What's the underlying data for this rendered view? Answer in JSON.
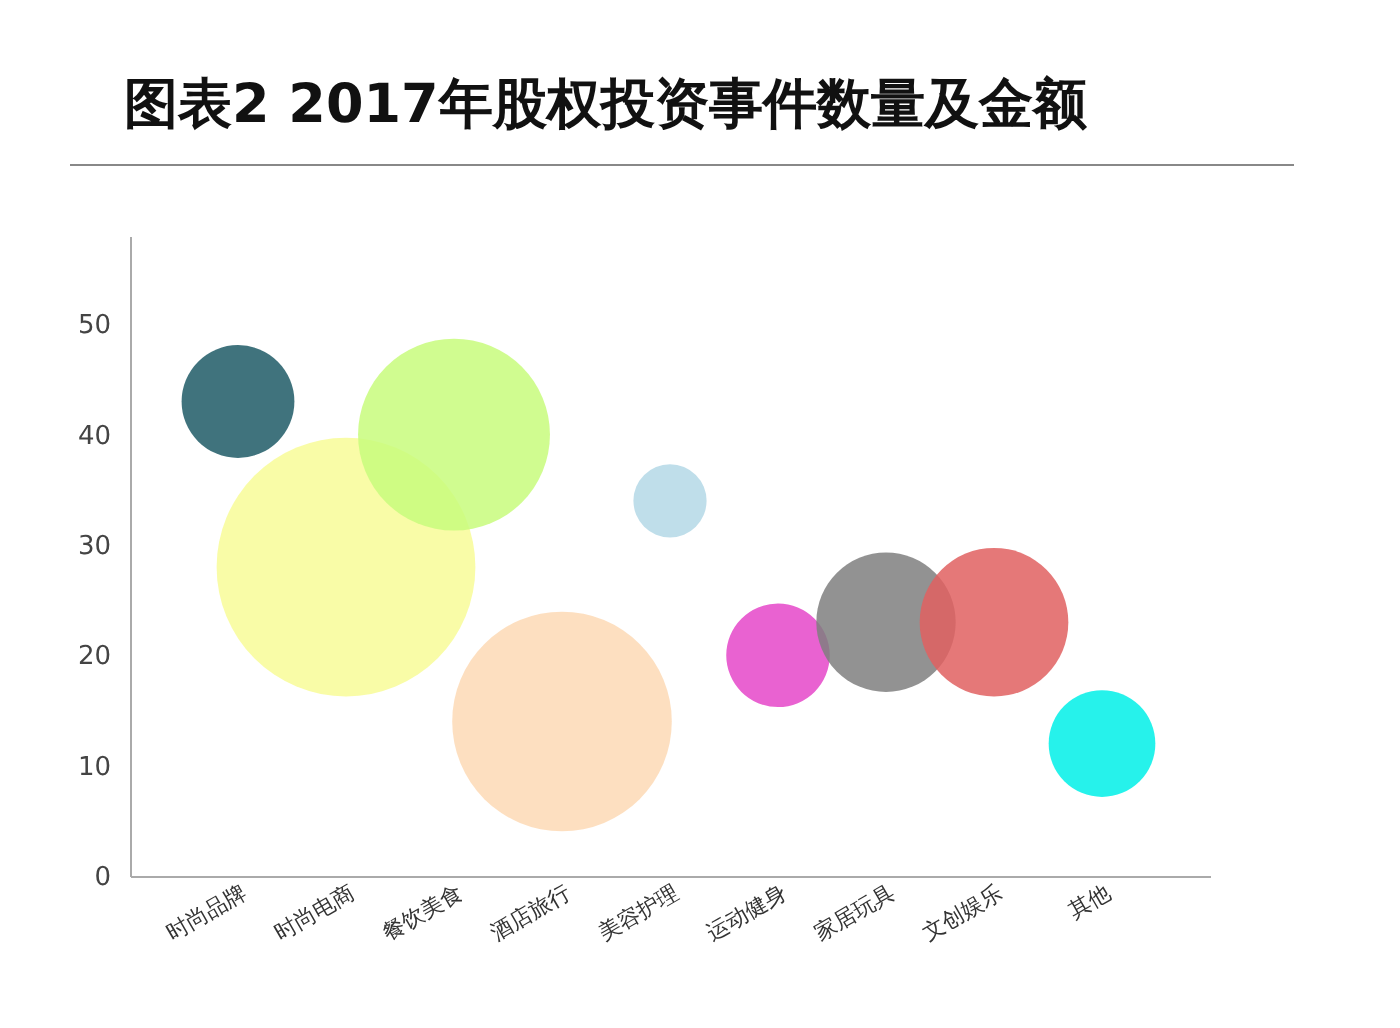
{
  "chart_data": {
    "type": "bubble",
    "title": "图表2 2017年股权投资事件数量及金额",
    "categories": [
      "时尚品牌",
      "时尚电商",
      "餐饮美食",
      "酒店旅行",
      "美容护理",
      "运动健身",
      "家居玩具",
      "文创娱乐",
      "其他"
    ],
    "values": [
      43,
      28,
      40,
      14,
      34,
      20,
      23,
      23,
      12
    ],
    "sizes": [
      0.19,
      1,
      0.55,
      0.72,
      0.08,
      0.16,
      0.29,
      0.33,
      0.17
    ],
    "colors": [
      "#1f5a66",
      "#f8fc98",
      "#c8fc7c",
      "#fdd9b5",
      "#b4d8e6",
      "#e547c9",
      "#7f7f7f",
      "#e06060",
      "#00f0e8"
    ],
    "ylim": [
      0,
      58
    ],
    "yticks": [
      0,
      10,
      20,
      30,
      40,
      50
    ],
    "grid": false,
    "legend": false
  }
}
